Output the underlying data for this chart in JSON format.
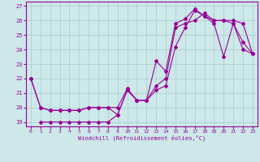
{
  "xlabel": "Windchill (Refroidissement éolien,°C)",
  "bg_color": "#cce8e8",
  "line_color": "#990099",
  "xlim": [
    -0.5,
    23.5
  ],
  "ylim": [
    18.7,
    27.3
  ],
  "yticks": [
    19,
    20,
    21,
    22,
    23,
    24,
    25,
    26,
    27
  ],
  "xticks": [
    0,
    1,
    2,
    3,
    4,
    5,
    6,
    7,
    8,
    9,
    10,
    11,
    12,
    13,
    14,
    15,
    16,
    17,
    18,
    19,
    20,
    21,
    22,
    23
  ],
  "line1_x": [
    0,
    1,
    2,
    3,
    4,
    5,
    6,
    7,
    8,
    9,
    10,
    11,
    12,
    13,
    14,
    15,
    16,
    17,
    18,
    19,
    20,
    21,
    22,
    23
  ],
  "line1_y": [
    22.0,
    20.0,
    19.8,
    19.8,
    19.8,
    19.8,
    20.0,
    20.0,
    20.0,
    20.0,
    21.3,
    20.5,
    20.5,
    21.2,
    21.5,
    24.2,
    25.5,
    26.7,
    26.3,
    26.0,
    26.0,
    26.0,
    25.8,
    23.7
  ],
  "line2_x": [
    0,
    1,
    2,
    3,
    4,
    5,
    6,
    7,
    8,
    9,
    10,
    11,
    12,
    13,
    14,
    15,
    16,
    17,
    18,
    19,
    20,
    21,
    22,
    23
  ],
  "line2_y": [
    22.0,
    20.0,
    19.8,
    19.8,
    19.8,
    19.8,
    20.0,
    20.0,
    20.0,
    19.5,
    21.2,
    20.5,
    20.5,
    23.2,
    22.5,
    25.8,
    26.1,
    26.8,
    26.3,
    25.8,
    23.5,
    25.8,
    24.0,
    23.7
  ],
  "line3_x": [
    1,
    2,
    3,
    4,
    5,
    6,
    7,
    8,
    9,
    10,
    11,
    12,
    13,
    14,
    15,
    16,
    17,
    18,
    19,
    20,
    21,
    22,
    23
  ],
  "line3_y": [
    19.0,
    19.0,
    19.0,
    19.0,
    19.0,
    19.0,
    19.0,
    19.0,
    19.5,
    21.2,
    20.5,
    20.5,
    21.5,
    22.0,
    25.5,
    25.8,
    26.0,
    26.5,
    26.0,
    26.0,
    25.8,
    24.5,
    23.7
  ]
}
